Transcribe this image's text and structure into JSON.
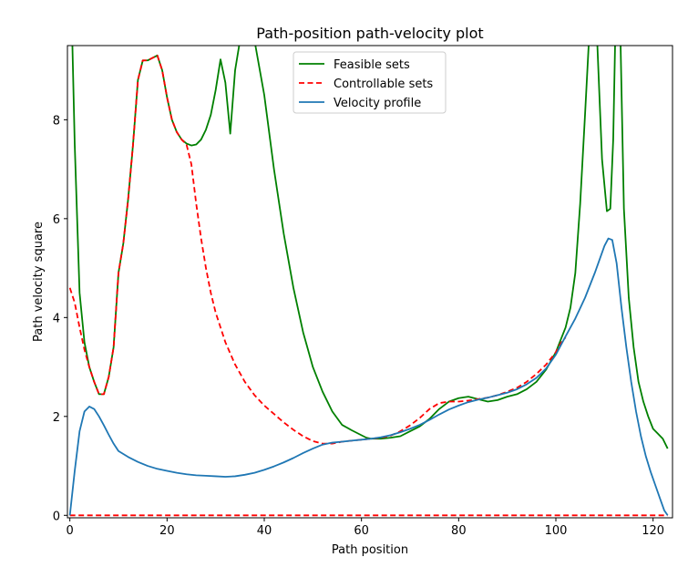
{
  "chart_data": {
    "type": "line",
    "title": "Path-position path-velocity plot",
    "xlabel": "Path position",
    "ylabel": "Path velocity square",
    "xlim": [
      -0.5,
      124
    ],
    "ylim": [
      -0.05,
      9.5
    ],
    "xticks": [
      0,
      20,
      40,
      60,
      80,
      100,
      120
    ],
    "yticks": [
      0,
      2,
      4,
      6,
      8
    ],
    "grid": false,
    "legend_position": "top-center",
    "series": [
      {
        "name": "Feasible sets",
        "color": "#008000",
        "style": "solid",
        "points": [
          [
            0.5,
            9.6
          ],
          [
            1,
            7.5
          ],
          [
            2,
            4.5
          ],
          [
            3,
            3.5
          ],
          [
            4,
            3.0
          ],
          [
            5,
            2.7
          ],
          [
            6,
            2.45
          ],
          [
            7,
            2.45
          ],
          [
            8,
            2.8
          ],
          [
            9,
            3.4
          ],
          [
            10,
            4.9
          ],
          [
            11,
            5.5
          ],
          [
            12,
            6.4
          ],
          [
            13,
            7.5
          ],
          [
            14,
            8.8
          ],
          [
            15,
            9.2
          ],
          [
            16,
            9.2
          ],
          [
            17,
            9.25
          ],
          [
            18,
            9.3
          ],
          [
            19,
            9.0
          ],
          [
            20,
            8.45
          ],
          [
            21,
            8.0
          ],
          [
            22,
            7.75
          ],
          [
            23,
            7.6
          ],
          [
            24,
            7.52
          ],
          [
            25,
            7.48
          ],
          [
            26,
            7.5
          ],
          [
            27,
            7.6
          ],
          [
            28,
            7.8
          ],
          [
            29,
            8.1
          ],
          [
            30,
            8.6
          ],
          [
            31,
            9.22
          ],
          [
            32,
            8.75
          ],
          [
            33,
            7.72
          ],
          [
            34,
            9.0
          ],
          [
            35,
            9.6
          ],
          [
            38,
            9.6
          ],
          [
            40,
            8.5
          ],
          [
            42,
            7.0
          ],
          [
            44,
            5.7
          ],
          [
            46,
            4.6
          ],
          [
            48,
            3.7
          ],
          [
            50,
            3.0
          ],
          [
            52,
            2.5
          ],
          [
            54,
            2.1
          ],
          [
            56,
            1.83
          ],
          [
            58,
            1.72
          ],
          [
            61,
            1.57
          ],
          [
            62,
            1.55
          ],
          [
            64,
            1.55
          ],
          [
            66,
            1.57
          ],
          [
            68,
            1.6
          ],
          [
            70,
            1.7
          ],
          [
            72,
            1.8
          ],
          [
            74,
            1.95
          ],
          [
            76,
            2.15
          ],
          [
            78,
            2.3
          ],
          [
            80,
            2.37
          ],
          [
            82,
            2.4
          ],
          [
            84,
            2.35
          ],
          [
            86,
            2.3
          ],
          [
            88,
            2.33
          ],
          [
            90,
            2.4
          ],
          [
            92,
            2.45
          ],
          [
            94,
            2.55
          ],
          [
            96,
            2.7
          ],
          [
            98,
            2.95
          ],
          [
            100,
            3.3
          ],
          [
            101,
            3.55
          ],
          [
            102,
            3.8
          ],
          [
            103,
            4.2
          ],
          [
            104,
            4.9
          ],
          [
            105,
            6.3
          ],
          [
            106,
            8.1
          ],
          [
            106.8,
            9.6
          ],
          [
            108.5,
            9.6
          ],
          [
            109.5,
            7.2
          ],
          [
            110.5,
            6.15
          ],
          [
            111.2,
            6.2
          ],
          [
            111.8,
            7.6
          ],
          [
            112.2,
            9.6
          ],
          [
            113.3,
            9.6
          ],
          [
            114,
            6.2
          ],
          [
            115,
            4.4
          ],
          [
            116,
            3.4
          ],
          [
            117,
            2.7
          ],
          [
            118,
            2.3
          ],
          [
            119,
            2.0
          ],
          [
            120,
            1.75
          ],
          [
            121,
            1.65
          ],
          [
            122,
            1.55
          ],
          [
            123,
            1.35
          ]
        ]
      },
      {
        "name": "Controllable sets",
        "color": "#ff0000",
        "style": "dashed",
        "points": [
          [
            0,
            4.6
          ],
          [
            1,
            4.3
          ],
          [
            2,
            3.8
          ],
          [
            3,
            3.35
          ],
          [
            4,
            3.0
          ],
          [
            5,
            2.7
          ],
          [
            6,
            2.45
          ],
          [
            7,
            2.45
          ],
          [
            8,
            2.8
          ],
          [
            9,
            3.4
          ],
          [
            10,
            4.9
          ],
          [
            11,
            5.5
          ],
          [
            12,
            6.4
          ],
          [
            13,
            7.5
          ],
          [
            14,
            8.8
          ],
          [
            15,
            9.2
          ],
          [
            16,
            9.2
          ],
          [
            17,
            9.25
          ],
          [
            18,
            9.3
          ],
          [
            19,
            9.0
          ],
          [
            20,
            8.45
          ],
          [
            21,
            8.0
          ],
          [
            22,
            7.75
          ],
          [
            23,
            7.6
          ],
          [
            24,
            7.5
          ],
          [
            25,
            7.1
          ],
          [
            26,
            6.3
          ],
          [
            27,
            5.6
          ],
          [
            28,
            5.0
          ],
          [
            29,
            4.5
          ],
          [
            30,
            4.1
          ],
          [
            32,
            3.5
          ],
          [
            34,
            3.05
          ],
          [
            36,
            2.7
          ],
          [
            38,
            2.43
          ],
          [
            40,
            2.22
          ],
          [
            42,
            2.05
          ],
          [
            44,
            1.88
          ],
          [
            46,
            1.73
          ],
          [
            48,
            1.6
          ],
          [
            50,
            1.5
          ],
          [
            52,
            1.45
          ],
          [
            54,
            1.45
          ],
          [
            56,
            1.49
          ],
          [
            58,
            1.51
          ],
          [
            60,
            1.53
          ],
          [
            62,
            1.55
          ],
          [
            64,
            1.57
          ],
          [
            66,
            1.61
          ],
          [
            68,
            1.7
          ],
          [
            70,
            1.82
          ],
          [
            72,
            1.97
          ],
          [
            74,
            2.15
          ],
          [
            76,
            2.27
          ],
          [
            78,
            2.3
          ],
          [
            80,
            2.3
          ],
          [
            82,
            2.32
          ],
          [
            84,
            2.35
          ],
          [
            86,
            2.38
          ],
          [
            88,
            2.43
          ],
          [
            90,
            2.5
          ],
          [
            92,
            2.58
          ],
          [
            94,
            2.7
          ],
          [
            96,
            2.86
          ],
          [
            98,
            3.05
          ],
          [
            100,
            3.3
          ],
          [
            101,
            3.48
          ],
          [
            102,
            3.6
          ]
        ]
      },
      {
        "name": "",
        "color": "#ff0000",
        "style": "dashed",
        "points": [
          [
            0,
            0
          ],
          [
            123,
            0
          ]
        ]
      },
      {
        "name": "Velocity profile",
        "color": "#1f77b4",
        "style": "solid",
        "points": [
          [
            0,
            0
          ],
          [
            1,
            0.9
          ],
          [
            2,
            1.7
          ],
          [
            3,
            2.1
          ],
          [
            4,
            2.2
          ],
          [
            5,
            2.15
          ],
          [
            6,
            2.0
          ],
          [
            7,
            1.82
          ],
          [
            8,
            1.63
          ],
          [
            9,
            1.45
          ],
          [
            10,
            1.3
          ],
          [
            12,
            1.18
          ],
          [
            14,
            1.08
          ],
          [
            16,
            1.0
          ],
          [
            18,
            0.94
          ],
          [
            20,
            0.9
          ],
          [
            22,
            0.86
          ],
          [
            24,
            0.83
          ],
          [
            26,
            0.81
          ],
          [
            28,
            0.8
          ],
          [
            30,
            0.79
          ],
          [
            32,
            0.78
          ],
          [
            34,
            0.79
          ],
          [
            36,
            0.82
          ],
          [
            38,
            0.86
          ],
          [
            40,
            0.92
          ],
          [
            42,
            0.99
          ],
          [
            44,
            1.07
          ],
          [
            46,
            1.16
          ],
          [
            48,
            1.26
          ],
          [
            50,
            1.35
          ],
          [
            52,
            1.43
          ],
          [
            54,
            1.47
          ],
          [
            56,
            1.49
          ],
          [
            58,
            1.51
          ],
          [
            60,
            1.53
          ],
          [
            62,
            1.55
          ],
          [
            64,
            1.58
          ],
          [
            66,
            1.62
          ],
          [
            68,
            1.68
          ],
          [
            70,
            1.75
          ],
          [
            72,
            1.83
          ],
          [
            74,
            1.93
          ],
          [
            76,
            2.04
          ],
          [
            78,
            2.14
          ],
          [
            80,
            2.22
          ],
          [
            82,
            2.29
          ],
          [
            84,
            2.34
          ],
          [
            86,
            2.38
          ],
          [
            88,
            2.43
          ],
          [
            90,
            2.48
          ],
          [
            92,
            2.55
          ],
          [
            94,
            2.65
          ],
          [
            96,
            2.78
          ],
          [
            98,
            2.97
          ],
          [
            100,
            3.25
          ],
          [
            102,
            3.62
          ],
          [
            104,
            3.98
          ],
          [
            106,
            4.4
          ],
          [
            108,
            4.9
          ],
          [
            110,
            5.45
          ],
          [
            110.8,
            5.6
          ],
          [
            111.6,
            5.57
          ],
          [
            112.5,
            5.1
          ],
          [
            113.5,
            4.2
          ],
          [
            114.5,
            3.4
          ],
          [
            115.5,
            2.7
          ],
          [
            116.5,
            2.1
          ],
          [
            117.5,
            1.6
          ],
          [
            118.5,
            1.2
          ],
          [
            119.5,
            0.88
          ],
          [
            120.5,
            0.6
          ],
          [
            121.5,
            0.32
          ],
          [
            122.3,
            0.1
          ],
          [
            123,
            0
          ]
        ]
      }
    ]
  }
}
